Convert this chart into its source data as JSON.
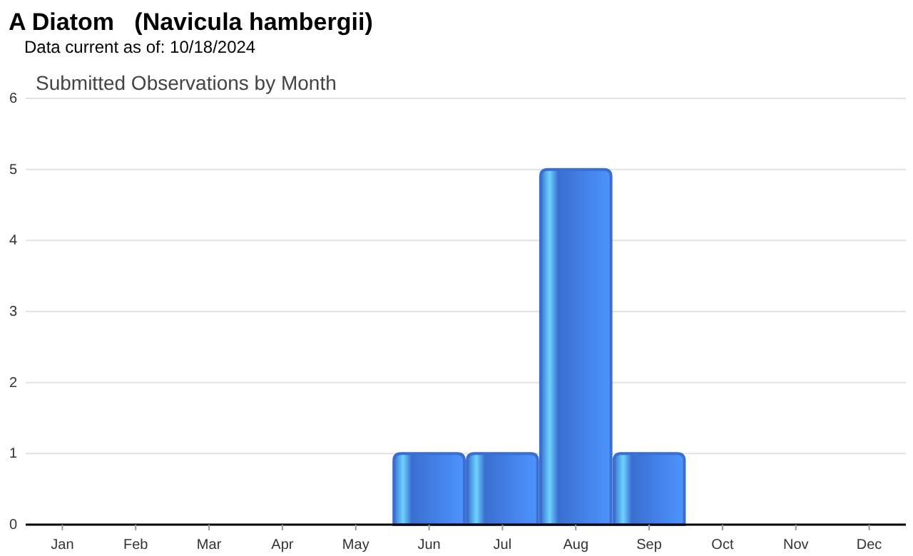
{
  "chart_data": {
    "type": "bar",
    "title": "A Diatom   (Navicula hambergii)",
    "subtitle": "Data current as of: 10/18/2024",
    "annotations": [
      "Submitted Observations by Month"
    ],
    "categories": [
      "Jan",
      "Feb",
      "Mar",
      "Apr",
      "May",
      "Jun",
      "Jul",
      "Aug",
      "Sep",
      "Oct",
      "Nov",
      "Dec"
    ],
    "values": [
      0,
      0,
      0,
      0,
      0,
      1,
      1,
      5,
      1,
      0,
      0,
      0
    ],
    "color": "#3a6fd0",
    "ylim": [
      0,
      6
    ],
    "yticks": [
      0,
      1,
      2,
      3,
      4,
      5,
      6
    ],
    "grid": "y"
  }
}
